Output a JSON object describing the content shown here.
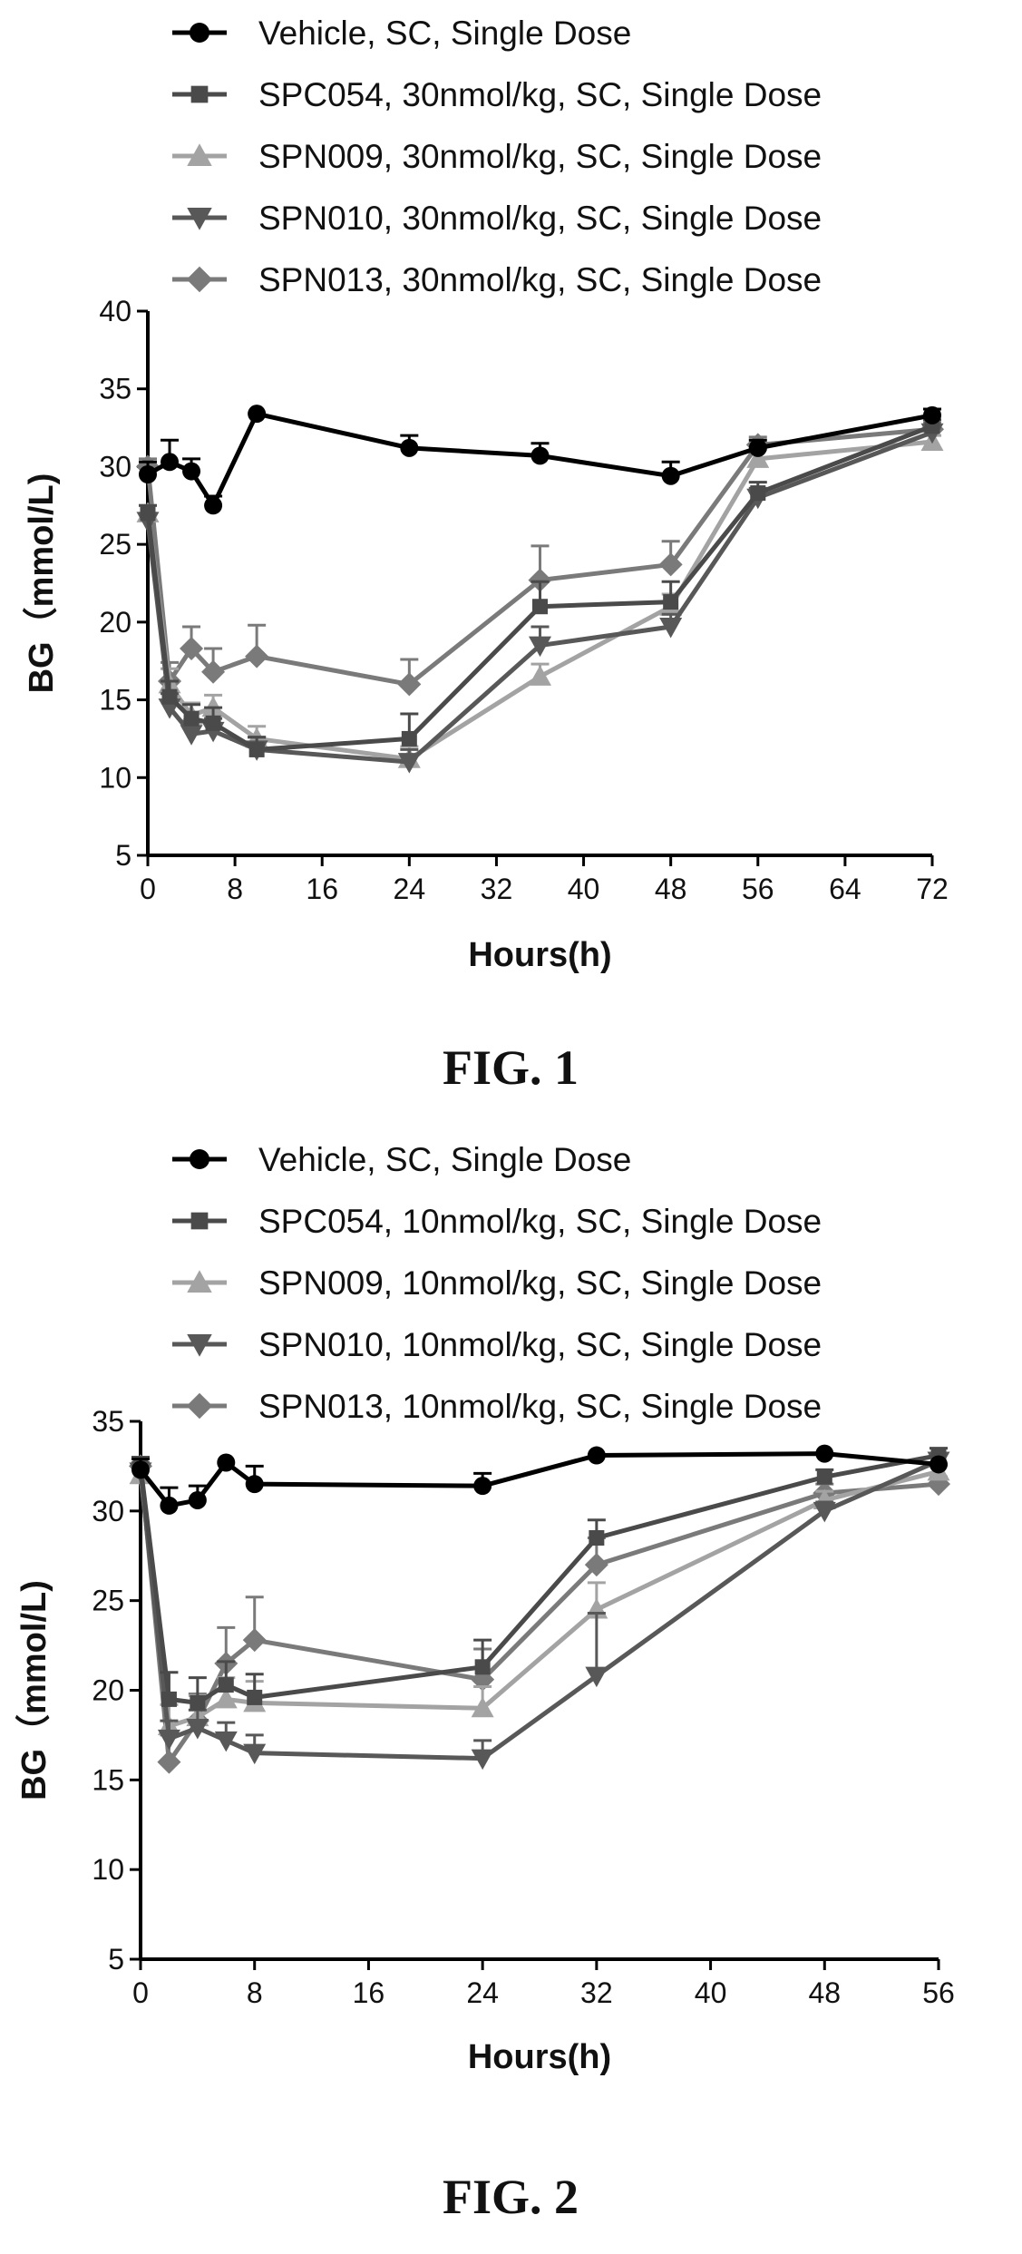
{
  "chart_data": [
    {
      "type": "line",
      "caption": "FIG. 1",
      "xlabel": "Hours(h)",
      "ylabel": "BG（mmol/L)",
      "xlim": [
        0,
        72
      ],
      "ylim": [
        5,
        40
      ],
      "xticks": [
        0,
        8,
        16,
        24,
        32,
        40,
        48,
        56,
        64,
        72
      ],
      "yticks": [
        5,
        10,
        15,
        20,
        25,
        30,
        35,
        40
      ],
      "legend_position": "top",
      "series": [
        {
          "name": "Vehicle, SC, Single Dose",
          "color": "#000000",
          "marker": "circle",
          "x": [
            0,
            2,
            4,
            6,
            10,
            24,
            36,
            48,
            56,
            72
          ],
          "y": [
            29.5,
            30.3,
            29.7,
            27.5,
            33.4,
            31.2,
            30.7,
            29.4,
            31.2,
            33.3
          ],
          "err": [
            0.8,
            1.4,
            0.8,
            0.6,
            0,
            0.8,
            0.8,
            0.9,
            0.5,
            0.4
          ]
        },
        {
          "name": "SPC054, 30nmol/kg, SC, Single Dose",
          "color": "#4a4a4a",
          "marker": "square",
          "x": [
            0,
            2,
            4,
            6,
            10,
            24,
            36,
            48,
            56,
            72
          ],
          "y": [
            27.0,
            15.2,
            13.8,
            13.5,
            11.8,
            12.5,
            21.0,
            21.3,
            28.3,
            32.6
          ],
          "err": [
            0.5,
            1.0,
            0.9,
            1.0,
            0.8,
            1.6,
            1.6,
            1.3,
            0.7,
            0.4
          ]
        },
        {
          "name": "SPN009, 30nmol/kg, SC, Single Dose",
          "color": "#a3a3a3",
          "marker": "triangle-up",
          "x": [
            0,
            2,
            4,
            6,
            10,
            24,
            36,
            48,
            56,
            72
          ],
          "y": [
            27.0,
            16.0,
            14.0,
            14.5,
            12.5,
            11.2,
            16.5,
            21.0,
            30.5,
            31.6
          ],
          "err": [
            0.5,
            1.0,
            0.8,
            0.8,
            0.8,
            0.8,
            0.8,
            0.8,
            0.6,
            0.4
          ]
        },
        {
          "name": "SPN010, 30nmol/kg, SC, Single Dose",
          "color": "#585858",
          "marker": "triangle-down",
          "x": [
            0,
            2,
            4,
            6,
            10,
            24,
            36,
            48,
            56,
            72
          ],
          "y": [
            26.5,
            14.5,
            12.8,
            13.0,
            11.8,
            11.0,
            18.5,
            19.7,
            28.0,
            32.2
          ],
          "err": [
            0.5,
            0.9,
            0.8,
            0.8,
            0.8,
            0.8,
            1.2,
            0.8,
            0.6,
            0.4
          ]
        },
        {
          "name": "SPN013, 30nmol/kg, SC, Single Dose",
          "color": "#7a7a7a",
          "marker": "diamond",
          "x": [
            0,
            2,
            4,
            6,
            10,
            24,
            36,
            48,
            56,
            72
          ],
          "y": [
            30.0,
            16.2,
            18.3,
            16.8,
            17.8,
            16.0,
            22.7,
            23.7,
            31.4,
            32.4
          ],
          "err": [
            0.5,
            1.2,
            1.4,
            1.5,
            2.0,
            1.6,
            2.2,
            1.5,
            0.5,
            0.4
          ]
        }
      ]
    },
    {
      "type": "line",
      "caption": "FIG. 2",
      "xlabel": "Hours(h)",
      "ylabel": "BG（mmol/L)",
      "xlim": [
        0,
        56
      ],
      "ylim": [
        5,
        35
      ],
      "xticks": [
        0,
        8,
        16,
        24,
        32,
        40,
        48,
        56
      ],
      "yticks": [
        5,
        10,
        15,
        20,
        25,
        30,
        35
      ],
      "legend_position": "top",
      "series": [
        {
          "name": "Vehicle, SC, Single Dose",
          "color": "#000000",
          "marker": "circle",
          "x": [
            0,
            2,
            4,
            6,
            8,
            24,
            32,
            48,
            56
          ],
          "y": [
            32.3,
            30.3,
            30.6,
            32.7,
            31.5,
            31.4,
            33.1,
            33.2,
            32.6
          ],
          "err": [
            0.6,
            1.0,
            0.8,
            0,
            1.0,
            0.7,
            0,
            0,
            0
          ]
        },
        {
          "name": "SPC054, 10nmol/kg, SC, Single Dose",
          "color": "#4a4a4a",
          "marker": "square",
          "x": [
            0,
            2,
            4,
            6,
            8,
            24,
            32,
            48,
            56
          ],
          "y": [
            32.5,
            19.5,
            19.3,
            20.3,
            19.6,
            21.3,
            28.5,
            31.9,
            33.1
          ],
          "err": [
            0.5,
            1.5,
            1.4,
            1.3,
            1.3,
            1.5,
            1.0,
            0.4,
            0.4
          ]
        },
        {
          "name": "SPN009, 10nmol/kg, SC, Single Dose",
          "color": "#a3a3a3",
          "marker": "triangle-up",
          "x": [
            0,
            2,
            4,
            6,
            8,
            24,
            32,
            48,
            56
          ],
          "y": [
            32.0,
            18.0,
            18.5,
            19.5,
            19.3,
            19.0,
            24.5,
            30.6,
            32.2
          ],
          "err": [
            0.5,
            1.2,
            1.2,
            1.2,
            1.2,
            1.2,
            1.5,
            0.5,
            0.4
          ]
        },
        {
          "name": "SPN010, 10nmol/kg, SC, Single Dose",
          "color": "#585858",
          "marker": "triangle-down",
          "x": [
            0,
            2,
            4,
            6,
            8,
            24,
            32,
            48,
            56
          ],
          "y": [
            32.2,
            17.3,
            17.9,
            17.2,
            16.5,
            16.2,
            20.8,
            30.0,
            32.8
          ],
          "err": [
            0.5,
            1.0,
            1.0,
            1.0,
            1.0,
            1.0,
            3.5,
            0.5,
            0.4
          ]
        },
        {
          "name": "SPN013, 10nmol/kg, SC, Single Dose",
          "color": "#7a7a7a",
          "marker": "diamond",
          "x": [
            0,
            2,
            4,
            6,
            8,
            24,
            32,
            48,
            56
          ],
          "y": [
            32.5,
            16.0,
            18.3,
            21.5,
            22.8,
            20.6,
            27.0,
            31.0,
            31.5
          ],
          "err": [
            0.5,
            1.5,
            1.5,
            2.0,
            2.4,
            1.7,
            1.5,
            0.5,
            0.4
          ]
        }
      ]
    }
  ]
}
